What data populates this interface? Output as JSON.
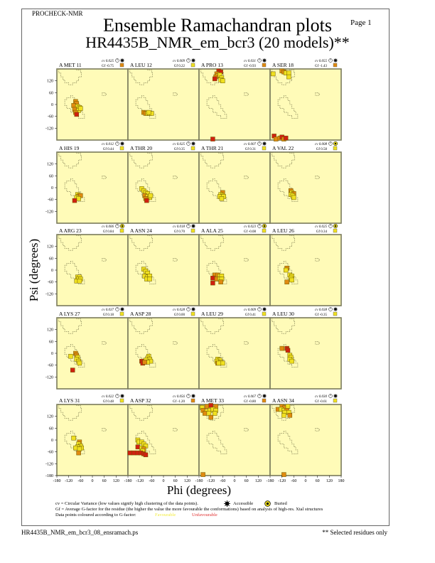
{
  "header": {
    "program": "PROCHECK-NMR",
    "page_label": "Page  1",
    "title_line1": "Ensemble Ramachandran plots",
    "title_line2": "HR4435B_NMR_em_bcr3 (20 models)**"
  },
  "footer": {
    "filename": "HR4435B_NMR_em_bcr3_08_ensramach.ps",
    "note": "** Selected residues only"
  },
  "legend": {
    "cv_text": "cv = Circular Variance (low values signify high clustering of the data points).",
    "accessible": "Accessible",
    "buried": "Buried",
    "gf_text": "Gf = Average G-factor for the residue (the higher the value the more favourable the conformations) based on analysis of high-res. Xtal structures",
    "colour_text": "Data points coloured according to G-factor:",
    "favourable": "Favourable",
    "unfavourable": "Unfavourable"
  },
  "colors": {
    "panel_bg": "#fffbb8",
    "panel_border": "#7a7a5a",
    "favourable": "#f0e020",
    "medium": "#e08a10",
    "unfavourable": "#d02010",
    "favourable_text": "#f2ec40",
    "unfavourable_text": "#e03030"
  },
  "chart_data": {
    "type": "scatter",
    "xlabel": "Phi (degrees)",
    "ylabel": "Psi (degrees)",
    "xlim": [
      -180,
      180
    ],
    "ylim": [
      -180,
      180
    ],
    "x_ticks": [
      "-180",
      "-120",
      "-60",
      "0",
      "60",
      "120",
      "180"
    ],
    "y_ticks": [
      "120",
      "60",
      "0",
      "-60",
      "-120",
      "-180"
    ],
    "panels": [
      {
        "residue": "A MET 11",
        "cv": "cv 0.025",
        "gf": "Gf -0.75",
        "gf_class": "medium",
        "access": "accessible",
        "points": [
          [
            -85,
            15,
            "m"
          ],
          [
            -80,
            5,
            "m"
          ],
          [
            -95,
            -5,
            "m"
          ],
          [
            -75,
            -10,
            "f"
          ],
          [
            -65,
            -15,
            "f"
          ],
          [
            -90,
            -25,
            "m"
          ],
          [
            -70,
            -30,
            "f"
          ],
          [
            -85,
            -40,
            "m"
          ],
          [
            -80,
            -50,
            "u"
          ],
          [
            -60,
            -20,
            "f"
          ]
        ]
      },
      {
        "residue": "A LEU 12",
        "cv": "cv 0.009",
        "gf": "Gf 0.22",
        "gf_class": "favourable",
        "access": "accessible",
        "points": [
          [
            -100,
            -40,
            "m"
          ],
          [
            -90,
            -45,
            "m"
          ],
          [
            -80,
            -45,
            "f"
          ],
          [
            -70,
            -45,
            "f"
          ],
          [
            -60,
            -45,
            "f"
          ],
          [
            -75,
            -40,
            "f"
          ]
        ]
      },
      {
        "residue": "A PRO 13",
        "cv": "cv 0.031",
        "gf": "Gf -0.93",
        "gf_class": "medium",
        "access": "accessible",
        "points": [
          [
            -80,
            170,
            "u"
          ],
          [
            -70,
            165,
            "u"
          ],
          [
            -90,
            155,
            "m"
          ],
          [
            -85,
            145,
            "f"
          ],
          [
            -75,
            150,
            "f"
          ],
          [
            -95,
            140,
            "m"
          ],
          [
            -65,
            135,
            "f"
          ],
          [
            -100,
            130,
            "u"
          ],
          [
            -70,
            125,
            "f"
          ],
          [
            -60,
            120,
            "f"
          ],
          [
            -110,
            -175,
            "u"
          ]
        ]
      },
      {
        "residue": "A SER 18",
        "cv": "cv 0.055",
        "gf": "Gf -1.43",
        "gf_class": "medium",
        "access": "accessible",
        "points": [
          [
            -165,
            155,
            "f"
          ],
          [
            -120,
            170,
            "m"
          ],
          [
            -110,
            165,
            "m"
          ],
          [
            -100,
            160,
            "f"
          ],
          [
            -85,
            160,
            "f"
          ],
          [
            -85,
            140,
            "f"
          ],
          [
            -160,
            -160,
            "u"
          ],
          [
            -150,
            -175,
            "m"
          ],
          [
            -130,
            -170,
            "m"
          ],
          [
            -120,
            -165,
            "u"
          ],
          [
            -110,
            -175,
            "m"
          ],
          [
            -100,
            -170,
            "u"
          ]
        ]
      },
      {
        "residue": "A HIS 19",
        "cv": "cv 0.012",
        "gf": "Gf 0.44",
        "gf_class": "favourable",
        "access": "accessible",
        "points": [
          [
            -75,
            -35,
            "f"
          ],
          [
            -70,
            -45,
            "f"
          ],
          [
            -65,
            -40,
            "m"
          ],
          [
            -60,
            -40,
            "m"
          ],
          [
            -80,
            -50,
            "f"
          ],
          [
            -70,
            -55,
            "f"
          ],
          [
            -90,
            -65,
            "u"
          ]
        ]
      },
      {
        "residue": "A THR 20",
        "cv": "cv 0.025",
        "gf": "Gf 0.35",
        "gf_class": "favourable",
        "access": "accessible",
        "points": [
          [
            -110,
            -5,
            "f"
          ],
          [
            -100,
            -15,
            "f"
          ],
          [
            -90,
            -25,
            "f"
          ],
          [
            -80,
            -30,
            "f"
          ],
          [
            -95,
            -40,
            "m"
          ],
          [
            -80,
            -45,
            "f"
          ],
          [
            -70,
            -50,
            "f"
          ],
          [
            -90,
            -55,
            "m"
          ],
          [
            -85,
            -65,
            "u"
          ],
          [
            -65,
            -40,
            "f"
          ]
        ]
      },
      {
        "residue": "A THR 21",
        "cv": "cv 0.007",
        "gf": "Gf 0.31",
        "gf_class": "favourable",
        "access": "accessible",
        "points": [
          [
            -60,
            -25,
            "m"
          ],
          [
            -70,
            -35,
            "f"
          ],
          [
            -60,
            -40,
            "f"
          ],
          [
            -75,
            -45,
            "f"
          ],
          [
            -55,
            -45,
            "f"
          ],
          [
            -65,
            -55,
            "f"
          ]
        ]
      },
      {
        "residue": "A VAL 22",
        "cv": "cv 0.008",
        "gf": "Gf 0.58",
        "gf_class": "favourable",
        "access": "buried",
        "points": [
          [
            -75,
            -15,
            "m"
          ],
          [
            -70,
            -25,
            "f"
          ],
          [
            -60,
            -30,
            "m"
          ],
          [
            -75,
            -35,
            "f"
          ],
          [
            -65,
            -40,
            "f"
          ],
          [
            -60,
            -50,
            "f"
          ]
        ]
      },
      {
        "residue": "A ARG 23",
        "cv": "cv 0.006",
        "gf": "Gf 0.84",
        "gf_class": "favourable",
        "access": "buried",
        "points": [
          [
            -75,
            -35,
            "f"
          ],
          [
            -65,
            -35,
            "f"
          ],
          [
            -70,
            -45,
            "f"
          ],
          [
            -60,
            -45,
            "f"
          ],
          [
            -80,
            -55,
            "f"
          ],
          [
            -65,
            -55,
            "f"
          ]
        ]
      },
      {
        "residue": "A ASN 24",
        "cv": "cv 0.018",
        "gf": "Gf 0.70",
        "gf_class": "favourable",
        "access": "accessible",
        "points": [
          [
            -100,
            5,
            "f"
          ],
          [
            -90,
            -5,
            "f"
          ],
          [
            -80,
            -15,
            "f"
          ],
          [
            -95,
            -30,
            "f"
          ],
          [
            -80,
            -35,
            "f"
          ],
          [
            -70,
            -30,
            "f"
          ],
          [
            -85,
            -45,
            "f"
          ],
          [
            -70,
            -45,
            "f"
          ]
        ]
      },
      {
        "residue": "A ALA 25",
        "cv": "cv 0.023",
        "gf": "Gf -0.08",
        "gf_class": "favourable",
        "access": "buried",
        "points": [
          [
            -100,
            -25,
            "m"
          ],
          [
            -85,
            -25,
            "m"
          ],
          [
            -75,
            -30,
            "f"
          ],
          [
            -65,
            -30,
            "f"
          ],
          [
            -110,
            -40,
            "u"
          ],
          [
            -90,
            -45,
            "m"
          ],
          [
            -75,
            -45,
            "f"
          ],
          [
            -65,
            -45,
            "f"
          ],
          [
            -110,
            -65,
            "u"
          ],
          [
            -70,
            -60,
            "m"
          ]
        ]
      },
      {
        "residue": "A LEU 26",
        "cv": "cv 0.025",
        "gf": "Gf 0.34",
        "gf_class": "favourable",
        "access": "buried",
        "points": [
          [
            -95,
            10,
            "m"
          ],
          [
            -100,
            0,
            "f"
          ],
          [
            -80,
            -25,
            "f"
          ],
          [
            -70,
            -30,
            "f"
          ],
          [
            -75,
            -40,
            "f"
          ],
          [
            -70,
            -50,
            "f"
          ],
          [
            -95,
            -60,
            "m"
          ]
        ]
      },
      {
        "residue": "A LYS 27",
        "cv": "cv 0.037",
        "gf": "Gf 0.18",
        "gf_class": "favourable",
        "access": "accessible",
        "points": [
          [
            -110,
            -15,
            "f"
          ],
          [
            -85,
            0,
            "m"
          ],
          [
            -80,
            -10,
            "m"
          ],
          [
            -75,
            -20,
            "f"
          ],
          [
            -80,
            -30,
            "f"
          ],
          [
            -70,
            -40,
            "f"
          ],
          [
            -65,
            -50,
            "f"
          ],
          [
            -100,
            -85,
            "u"
          ]
        ]
      },
      {
        "residue": "A ASP 28",
        "cv": "cv 0.028",
        "gf": "Gf 0.00",
        "gf_class": "favourable",
        "access": "accessible",
        "points": [
          [
            -75,
            -15,
            "f"
          ],
          [
            -80,
            -25,
            "f"
          ],
          [
            -70,
            -30,
            "f"
          ],
          [
            -90,
            -35,
            "f"
          ],
          [
            -65,
            -40,
            "f"
          ],
          [
            -80,
            -45,
            "f"
          ],
          [
            -110,
            -40,
            "u"
          ],
          [
            -105,
            -50,
            "u"
          ],
          [
            -95,
            -45,
            "m"
          ]
        ]
      },
      {
        "residue": "A LEU 29",
        "cv": "cv 0.009",
        "gf": "Gf 0.41",
        "gf_class": "favourable",
        "access": "accessible",
        "points": [
          [
            -85,
            -30,
            "f"
          ],
          [
            -75,
            -35,
            "f"
          ],
          [
            -90,
            -40,
            "f"
          ],
          [
            -70,
            -45,
            "f"
          ],
          [
            -85,
            -50,
            "m"
          ],
          [
            -60,
            -50,
            "f"
          ],
          [
            -80,
            -50,
            "f"
          ]
        ]
      },
      {
        "residue": "A LEU 30",
        "cv": "cv 0.038",
        "gf": "Gf -0.35",
        "gf_class": "favourable",
        "access": "accessible",
        "points": [
          [
            -120,
            25,
            "m"
          ],
          [
            -95,
            25,
            "u"
          ],
          [
            -90,
            15,
            "u"
          ],
          [
            -80,
            -10,
            "f"
          ],
          [
            -75,
            -20,
            "f"
          ],
          [
            -80,
            -30,
            "f"
          ],
          [
            -70,
            -40,
            "f"
          ]
        ]
      },
      {
        "residue": "A LYS 31",
        "cv": "cv 0.022",
        "gf": "Gf 0.48",
        "gf_class": "favourable",
        "access": "accessible",
        "points": [
          [
            -95,
            10,
            "f"
          ],
          [
            -65,
            -10,
            "m"
          ],
          [
            -70,
            -20,
            "f"
          ],
          [
            -60,
            -30,
            "f"
          ],
          [
            -75,
            -35,
            "f"
          ],
          [
            -85,
            -40,
            "f"
          ],
          [
            -55,
            -40,
            "f"
          ],
          [
            -65,
            -45,
            "f"
          ],
          [
            -70,
            -65,
            "m"
          ]
        ]
      },
      {
        "residue": "A ASP 32",
        "cv": "cv 0.056",
        "gf": "Gf -1.20",
        "gf_class": "medium",
        "access": "accessible",
        "points": [
          [
            -130,
            0,
            "f"
          ],
          [
            -125,
            -10,
            "f"
          ],
          [
            -110,
            -10,
            "f"
          ],
          [
            -100,
            -20,
            "f"
          ],
          [
            -90,
            -30,
            "f"
          ],
          [
            -130,
            -35,
            "u"
          ],
          [
            -110,
            -40,
            "f"
          ],
          [
            -100,
            -45,
            "m"
          ],
          [
            -105,
            -55,
            "f"
          ],
          [
            -170,
            -65,
            "u"
          ],
          [
            -150,
            -65,
            "u"
          ],
          [
            -130,
            -65,
            "u"
          ],
          [
            -115,
            -65,
            "u"
          ],
          [
            -100,
            -70,
            "u"
          ],
          [
            -90,
            -75,
            "u"
          ]
        ]
      },
      {
        "residue": "A MET 33",
        "cv": "cv 0.067",
        "gf": "Gf -0.80",
        "gf_class": "medium",
        "access": "accessible",
        "points": [
          [
            -165,
            165,
            "f"
          ],
          [
            -140,
            170,
            "m"
          ],
          [
            -120,
            175,
            "u"
          ],
          [
            -95,
            170,
            "m"
          ],
          [
            -160,
            150,
            "m"
          ],
          [
            -140,
            145,
            "f"
          ],
          [
            -125,
            150,
            "f"
          ],
          [
            -110,
            155,
            "f"
          ],
          [
            -95,
            150,
            "f"
          ],
          [
            -150,
            135,
            "m"
          ],
          [
            -130,
            135,
            "f"
          ],
          [
            -100,
            135,
            "f"
          ],
          [
            -120,
            115,
            "m"
          ],
          [
            -160,
            -175,
            "m"
          ]
        ]
      },
      {
        "residue": "A ASN 34",
        "cv": "cv 0.030",
        "gf": "Gf -0.61",
        "gf_class": "favourable",
        "access": "accessible",
        "points": [
          [
            -120,
            170,
            "m"
          ],
          [
            -105,
            165,
            "m"
          ],
          [
            -90,
            170,
            "f"
          ],
          [
            -140,
            155,
            "m"
          ],
          [
            -125,
            155,
            "f"
          ],
          [
            -110,
            150,
            "f"
          ],
          [
            -95,
            150,
            "m"
          ],
          [
            -105,
            140,
            "f"
          ],
          [
            -85,
            140,
            "f"
          ],
          [
            -110,
            125,
            "f"
          ],
          [
            -80,
            125,
            "m"
          ],
          [
            -110,
            -175,
            "m"
          ]
        ]
      }
    ]
  }
}
